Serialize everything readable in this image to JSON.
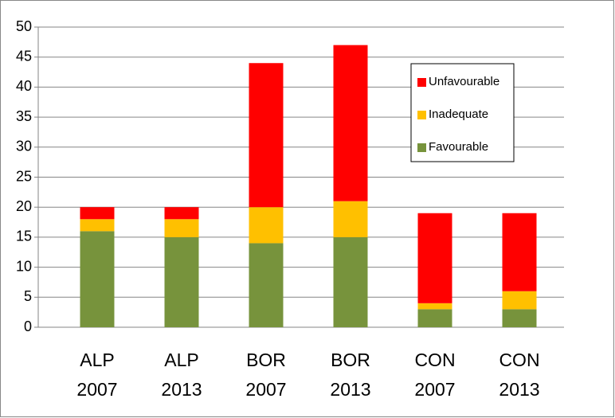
{
  "chart_data": {
    "type": "stacked_bar",
    "categories": [
      "ALP 2007",
      "ALP 2013",
      "BOR 2007",
      "BOR 2013",
      "CON 2007",
      "CON 2013"
    ],
    "series": [
      {
        "name": "Favourable",
        "color": "#77933c",
        "values": [
          16,
          15,
          14,
          15,
          3,
          3
        ]
      },
      {
        "name": "Inadequate",
        "color": "#ffc000",
        "values": [
          2,
          3,
          6,
          6,
          1,
          3
        ]
      },
      {
        "name": "Unfavourable",
        "color": "#ff0000",
        "values": [
          2,
          2,
          24,
          26,
          15,
          13
        ]
      }
    ],
    "ylim": [
      0,
      50
    ],
    "yticks": [
      0,
      5,
      10,
      15,
      20,
      25,
      30,
      35,
      40,
      45,
      50
    ],
    "grid": true,
    "legend": "upper right"
  }
}
